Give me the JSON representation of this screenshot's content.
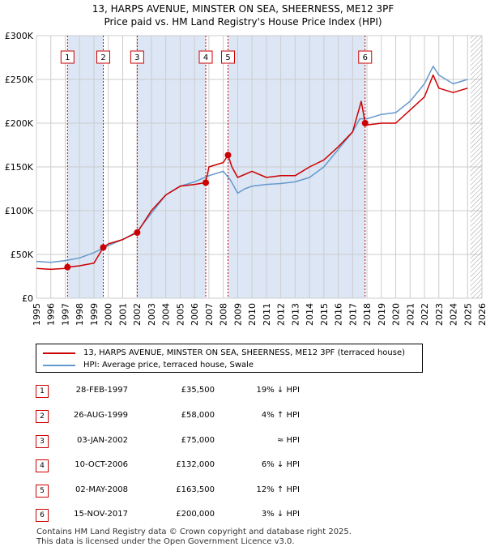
{
  "title_line1": "13, HARPS AVENUE, MINSTER ON SEA, SHEERNESS, ME12 3PF",
  "title_line2": "Price paid vs. HM Land Registry's House Price Index (HPI)",
  "colors": {
    "property": "#cc0000",
    "hpi": "#6699cc",
    "shade": "#dce6f5",
    "grid": "#cccccc",
    "vline": "#cc0000"
  },
  "legend": {
    "property_label": "13, HARPS AVENUE, MINSTER ON SEA, SHEERNESS, ME12 3PF (terraced house)",
    "hpi_label": "HPI: Average price, terraced house, Swale"
  },
  "transactions": [
    {
      "num": "1",
      "date": "28-FEB-1997",
      "price": "£35,500",
      "hpi": "19% ↓ HPI"
    },
    {
      "num": "2",
      "date": "26-AUG-1999",
      "price": "£58,000",
      "hpi": "4% ↑ HPI"
    },
    {
      "num": "3",
      "date": "03-JAN-2002",
      "price": "£75,000",
      "hpi": "≈ HPI"
    },
    {
      "num": "4",
      "date": "10-OCT-2006",
      "price": "£132,000",
      "hpi": "6% ↓ HPI"
    },
    {
      "num": "5",
      "date": "02-MAY-2008",
      "price": "£163,500",
      "hpi": "12% ↑ HPI"
    },
    {
      "num": "6",
      "date": "15-NOV-2017",
      "price": "£200,000",
      "hpi": "3% ↓ HPI"
    }
  ],
  "footer_line1": "Contains HM Land Registry data © Crown copyright and database right 2025.",
  "footer_line2": "This data is licensed under the Open Government Licence v3.0.",
  "chart_data": {
    "type": "line",
    "title": "13, HARPS AVENUE, MINSTER ON SEA, SHEERNESS, ME12 3PF — Price paid vs. HM Land Registry's House Price Index (HPI)",
    "xlabel": "",
    "ylabel": "",
    "xlim": [
      1995,
      2026
    ],
    "ylim": [
      0,
      300000
    ],
    "yticks": [
      0,
      50000,
      100000,
      150000,
      200000,
      250000,
      300000
    ],
    "ytick_labels": [
      "£0",
      "£50K",
      "£100K",
      "£150K",
      "£200K",
      "£250K",
      "£300K"
    ],
    "xticks": [
      1995,
      1996,
      1997,
      1998,
      1999,
      2000,
      2001,
      2002,
      2003,
      2004,
      2005,
      2006,
      2007,
      2008,
      2009,
      2010,
      2011,
      2012,
      2013,
      2014,
      2015,
      2016,
      2017,
      2018,
      2019,
      2020,
      2021,
      2022,
      2023,
      2024,
      2025,
      2026
    ],
    "grid": true,
    "shaded_regions": [
      [
        1997.16,
        1999.65
      ],
      [
        2002.01,
        2006.78
      ],
      [
        2008.33,
        2017.87
      ]
    ],
    "hatched_region": [
      2025.2,
      2026
    ],
    "markers": [
      {
        "label": "1",
        "x": 1997.16,
        "y": 35500
      },
      {
        "label": "2",
        "x": 1999.65,
        "y": 58000
      },
      {
        "label": "3",
        "x": 2002.01,
        "y": 75000
      },
      {
        "label": "4",
        "x": 2006.78,
        "y": 132000
      },
      {
        "label": "5",
        "x": 2008.33,
        "y": 163500
      },
      {
        "label": "6",
        "x": 2017.87,
        "y": 200000
      }
    ],
    "series": [
      {
        "name": "13, HARPS AVENUE, MINSTER ON SEA, SHEERNESS, ME12 3PF (terraced house)",
        "color": "#cc0000",
        "x": [
          1995,
          1996,
          1997,
          1997.16,
          1998,
          1999,
          1999.65,
          2000,
          2001,
          2002.01,
          2003,
          2004,
          2005,
          2006,
          2006.78,
          2007,
          2008,
          2008.33,
          2008.6,
          2009,
          2010,
          2011,
          2012,
          2013,
          2014,
          2015,
          2016,
          2017,
          2017.6,
          2017.87,
          2018,
          2019,
          2020,
          2021,
          2022,
          2022.6,
          2023,
          2024,
          2025
        ],
        "y": [
          34000,
          33000,
          34000,
          35500,
          37000,
          40000,
          58000,
          62000,
          67000,
          75000,
          100000,
          118000,
          128000,
          130000,
          132000,
          150000,
          155000,
          163500,
          150000,
          138000,
          145000,
          138000,
          140000,
          140000,
          150000,
          158000,
          173000,
          190000,
          225000,
          200000,
          198000,
          200000,
          200000,
          215000,
          230000,
          255000,
          240000,
          235000,
          240000
        ]
      },
      {
        "name": "HPI: Average price, terraced house, Swale",
        "color": "#6699cc",
        "x": [
          1995,
          1996,
          1997,
          1998,
          1999,
          2000,
          2001,
          2002,
          2003,
          2004,
          2005,
          2006,
          2007,
          2008,
          2008.5,
          2009,
          2009.5,
          2010,
          2011,
          2012,
          2013,
          2014,
          2015,
          2016,
          2017,
          2017.5,
          2018,
          2019,
          2020,
          2021,
          2022,
          2022.6,
          2023,
          2024,
          2025
        ],
        "y": [
          42000,
          41000,
          43000,
          46000,
          52000,
          60000,
          67000,
          76000,
          97000,
          118000,
          128000,
          133000,
          140000,
          145000,
          135000,
          120000,
          125000,
          128000,
          130000,
          131000,
          133000,
          138000,
          150000,
          170000,
          190000,
          205000,
          205000,
          210000,
          212000,
          225000,
          245000,
          265000,
          255000,
          245000,
          250000
        ]
      }
    ]
  }
}
